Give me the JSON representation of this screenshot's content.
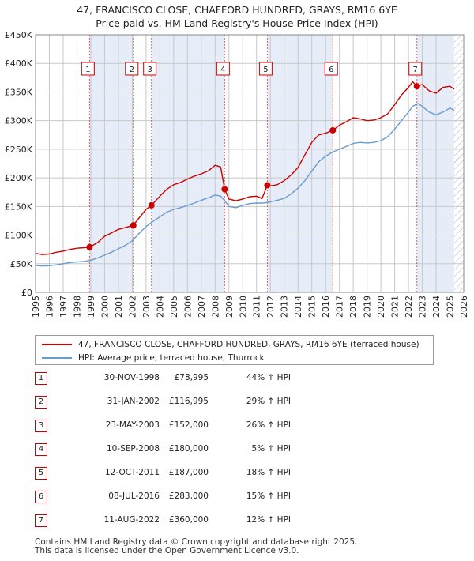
{
  "title": {
    "line1": "47, FRANCISCO CLOSE, CHAFFORD HUNDRED, GRAYS, RM16 6YE",
    "line2": "Price paid vs. HM Land Registry's House Price Index (HPI)"
  },
  "colors": {
    "property": "#cc0000",
    "hpi": "#6b9bd1",
    "shade": "#e6edf8",
    "grid": "#c8c8c8",
    "marker": "#cc0000"
  },
  "legend": {
    "property_label": "47, FRANCISCO CLOSE, CHAFFORD HUNDRED, GRAYS, RM16 6YE (terraced house)",
    "hpi_label": "HPI: Average price, terraced house, Thurrock"
  },
  "sales": [
    {
      "num": "1",
      "date": "30-NOV-1998",
      "price": "£78,995",
      "hpi": "44% ↑ HPI"
    },
    {
      "num": "2",
      "date": "31-JAN-2002",
      "price": "£116,995",
      "hpi": "29% ↑ HPI"
    },
    {
      "num": "3",
      "date": "23-MAY-2003",
      "price": "£152,000",
      "hpi": "26% ↑ HPI"
    },
    {
      "num": "4",
      "date": "10-SEP-2008",
      "price": "£180,000",
      "hpi": "5% ↑ HPI"
    },
    {
      "num": "5",
      "date": "12-OCT-2011",
      "price": "£187,000",
      "hpi": "18% ↑ HPI"
    },
    {
      "num": "6",
      "date": "08-JUL-2016",
      "price": "£283,000",
      "hpi": "15% ↑ HPI"
    },
    {
      "num": "7",
      "date": "11-AUG-2022",
      "price": "£360,000",
      "hpi": "12% ↑ HPI"
    }
  ],
  "footer": {
    "line1": "Contains HM Land Registry data © Crown copyright and database right 2025.",
    "line2": "This data is licensed under the Open Government Licence v3.0."
  },
  "chart_data": {
    "type": "line",
    "xlim": [
      1995,
      2026
    ],
    "ylim": [
      0,
      450000
    ],
    "y_ticks": [
      0,
      50000,
      100000,
      150000,
      200000,
      250000,
      300000,
      350000,
      400000,
      450000
    ],
    "y_tick_labels": [
      "£0",
      "£50K",
      "£100K",
      "£150K",
      "£200K",
      "£250K",
      "£300K",
      "£350K",
      "£400K",
      "£450K"
    ],
    "x_ticks": [
      1995,
      1996,
      1997,
      1998,
      1999,
      2000,
      2001,
      2002,
      2003,
      2004,
      2005,
      2006,
      2007,
      2008,
      2009,
      2010,
      2011,
      2012,
      2013,
      2014,
      2015,
      2016,
      2017,
      2018,
      2019,
      2020,
      2021,
      2022,
      2023,
      2024,
      2025,
      2026
    ],
    "x_tick_labels": [
      "1995",
      "1996",
      "1997",
      "1998",
      "1999",
      "2000",
      "2001",
      "2002",
      "2003",
      "2004",
      "2005",
      "2006",
      "2007",
      "2008",
      "2009",
      "2010",
      "2011",
      "2012",
      "2013",
      "2014",
      "2015",
      "2016",
      "2017",
      "2018",
      "2019",
      "2020",
      "2021",
      "2022",
      "2023",
      "2024",
      "2025",
      "2026"
    ],
    "grid": true,
    "shaded_spans": [
      [
        1998.9,
        2002.08
      ],
      [
        2003.39,
        2008.69
      ],
      [
        2011.78,
        2016.52
      ],
      [
        2022.61,
        2025.3
      ]
    ],
    "future_hatch_from": 2025.3,
    "sale_points": [
      {
        "num": "1",
        "x": 1998.91,
        "y": 78995
      },
      {
        "num": "2",
        "x": 2002.08,
        "y": 116995
      },
      {
        "num": "3",
        "x": 2003.39,
        "y": 152000
      },
      {
        "num": "4",
        "x": 2008.69,
        "y": 180000
      },
      {
        "num": "5",
        "x": 2011.78,
        "y": 187000
      },
      {
        "num": "6",
        "x": 2016.52,
        "y": 283000
      },
      {
        "num": "7",
        "x": 2022.61,
        "y": 360000
      }
    ],
    "series": [
      {
        "name": "47, FRANCISCO CLOSE, CHAFFORD HUNDRED, GRAYS, RM16 6YE (terraced house)",
        "x": [
          1995,
          1995.5,
          1996,
          1996.5,
          1997,
          1997.5,
          1998,
          1998.5,
          1998.91,
          1999.5,
          2000,
          2000.5,
          2001,
          2001.5,
          2002.08,
          2002.5,
          2003,
          2003.39,
          2004,
          2004.5,
          2005,
          2005.5,
          2006,
          2006.5,
          2007,
          2007.5,
          2008,
          2008.4,
          2008.69,
          2009,
          2009.5,
          2010,
          2010.5,
          2011,
          2011.4,
          2011.78,
          2012,
          2012.5,
          2013,
          2013.5,
          2014,
          2014.5,
          2015,
          2015.5,
          2016,
          2016.52,
          2017,
          2017.5,
          2018,
          2018.5,
          2019,
          2019.5,
          2020,
          2020.5,
          2021,
          2021.5,
          2022,
          2022.3,
          2022.61,
          2023,
          2023.5,
          2024,
          2024.5,
          2025,
          2025.3
        ],
        "y": [
          68000,
          66000,
          67000,
          70000,
          72000,
          75000,
          77000,
          78000,
          78995,
          87000,
          98000,
          104000,
          110000,
          113000,
          116995,
          130000,
          145000,
          152000,
          168000,
          180000,
          188000,
          192000,
          198000,
          203000,
          207000,
          212000,
          222000,
          219000,
          180000,
          163000,
          160000,
          163000,
          167000,
          168000,
          164000,
          187000,
          186000,
          188000,
          195000,
          205000,
          218000,
          240000,
          262000,
          275000,
          278000,
          283000,
          292000,
          298000,
          305000,
          303000,
          300000,
          301000,
          305000,
          312000,
          328000,
          345000,
          358000,
          368000,
          360000,
          363000,
          352000,
          348000,
          358000,
          360000,
          355000
        ]
      },
      {
        "name": "HPI: Average price, terraced house, Thurrock",
        "x": [
          1995,
          1995.5,
          1996,
          1996.5,
          1997,
          1997.5,
          1998,
          1998.5,
          1999,
          1999.5,
          2000,
          2000.5,
          2001,
          2001.5,
          2002,
          2002.5,
          2003,
          2003.5,
          2004,
          2004.5,
          2005,
          2005.5,
          2006,
          2006.5,
          2007,
          2007.5,
          2008,
          2008.4,
          2008.7,
          2009,
          2009.5,
          2010,
          2010.5,
          2011,
          2011.5,
          2012,
          2012.5,
          2013,
          2013.5,
          2014,
          2014.5,
          2015,
          2015.5,
          2016,
          2016.5,
          2017,
          2017.5,
          2018,
          2018.5,
          2019,
          2019.5,
          2020,
          2020.5,
          2021,
          2021.5,
          2022,
          2022.3,
          2022.7,
          2023,
          2023.5,
          2024,
          2024.5,
          2025,
          2025.3
        ],
        "y": [
          47000,
          46000,
          46500,
          48000,
          50000,
          52000,
          53000,
          54000,
          56000,
          60000,
          65000,
          70000,
          76000,
          82000,
          90000,
          103000,
          115000,
          124000,
          132000,
          140000,
          145000,
          148000,
          152000,
          156000,
          161000,
          165000,
          170000,
          168000,
          160000,
          150000,
          148000,
          152000,
          155000,
          156000,
          156000,
          158000,
          161000,
          164000,
          172000,
          182000,
          195000,
          212000,
          228000,
          238000,
          245000,
          250000,
          255000,
          260000,
          262000,
          261000,
          262000,
          265000,
          272000,
          285000,
          300000,
          315000,
          325000,
          330000,
          325000,
          315000,
          310000,
          315000,
          322000,
          318000
        ]
      }
    ]
  }
}
